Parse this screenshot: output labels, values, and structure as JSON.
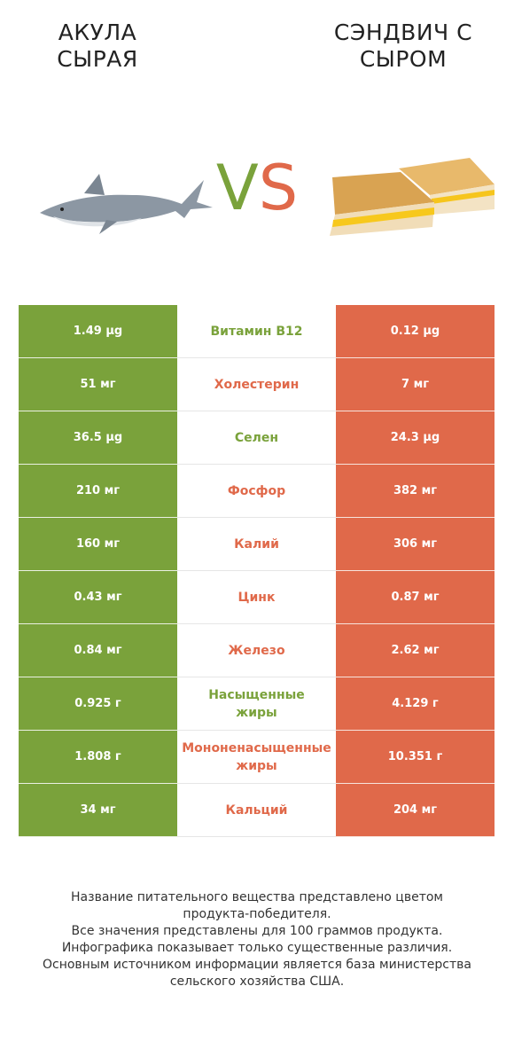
{
  "header": {
    "left_title_line1": "АКУЛА",
    "left_title_line2": "СЫРАЯ",
    "right_title_line1": "СЭНДВИЧ С",
    "right_title_line2": "СЫРОМ",
    "vs_v": "V",
    "vs_s": "S"
  },
  "colors": {
    "left": "#7aa23b",
    "right": "#e0694a"
  },
  "rows": [
    {
      "left": "1.49 µg",
      "nutrient": "Витамин B12",
      "right": "0.12 µg",
      "winner": "left"
    },
    {
      "left": "51 мг",
      "nutrient": "Холестерин",
      "right": "7 мг",
      "winner": "right"
    },
    {
      "left": "36.5 µg",
      "nutrient": "Селен",
      "right": "24.3 µg",
      "winner": "left"
    },
    {
      "left": "210 мг",
      "nutrient": "Фосфор",
      "right": "382 мг",
      "winner": "right"
    },
    {
      "left": "160 мг",
      "nutrient": "Калий",
      "right": "306 мг",
      "winner": "right"
    },
    {
      "left": "0.43 мг",
      "nutrient": "Цинк",
      "right": "0.87 мг",
      "winner": "right"
    },
    {
      "left": "0.84 мг",
      "nutrient": "Железо",
      "right": "2.62 мг",
      "winner": "right"
    },
    {
      "left": "0.925 г",
      "nutrient": "Насыщенные жиры",
      "nutrient_line1": "Насыщенные",
      "nutrient_line2": "жиры",
      "right": "4.129 г",
      "winner": "left"
    },
    {
      "left": "1.808 г",
      "nutrient": "Мононенасыщенные жиры",
      "nutrient_line1": "Мононенасыщенные",
      "nutrient_line2": "жиры",
      "right": "10.351 г",
      "winner": "right"
    },
    {
      "left": "34 мг",
      "nutrient": "Кальций",
      "right": "204 мг",
      "winner": "right"
    }
  ],
  "footnote": {
    "line1": "Название питательного вещества представлено цветом",
    "line2": "продукта-победителя.",
    "line3": "Все значения представлены для 100 граммов продукта.",
    "line4": "Инфографика показывает только существенные различия.",
    "line5": "Основным источником информации является база министерства",
    "line6": "сельского хозяйства США."
  }
}
